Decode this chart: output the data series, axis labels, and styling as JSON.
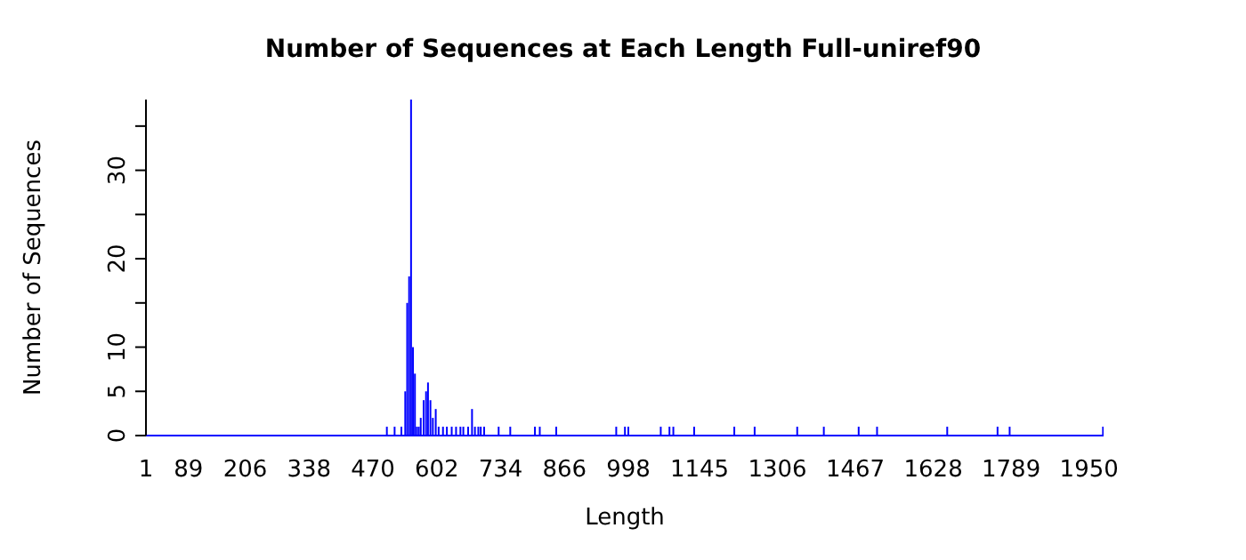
{
  "chart_data": {
    "type": "bar",
    "title": "Number of Sequences at Each Length  Full-uniref90",
    "xlabel": "Length",
    "ylabel": "Number of Sequences",
    "x": [
      499,
      515,
      529,
      537,
      541,
      545,
      549,
      553,
      557,
      561,
      565,
      569,
      575,
      580,
      584,
      589,
      594,
      600,
      606,
      615,
      623,
      633,
      642,
      651,
      657,
      667,
      675,
      681,
      688,
      693,
      700,
      730,
      754,
      805,
      815,
      849,
      973,
      991,
      998,
      1065,
      1083,
      1091,
      1134,
      1217,
      1259,
      1347,
      1402,
      1474,
      1512,
      1657,
      1761,
      1786,
      1979
    ],
    "values": [
      1,
      1,
      1,
      5,
      15,
      18,
      38,
      10,
      7,
      1,
      1,
      2,
      4,
      5,
      6,
      4,
      2,
      3,
      1,
      1,
      1,
      1,
      1,
      1,
      1,
      1,
      3,
      1,
      1,
      1,
      1,
      1,
      1,
      1,
      1,
      1,
      1,
      1,
      1,
      1,
      1,
      1,
      1,
      1,
      1,
      1,
      1,
      1,
      1,
      1,
      1,
      1,
      1
    ],
    "color": "#0000ff",
    "xlim": [
      1,
      1980
    ],
    "xticks": [
      1,
      89,
      206,
      338,
      470,
      602,
      734,
      866,
      998,
      1145,
      1306,
      1467,
      1628,
      1789,
      1950
    ],
    "ylim": [
      0,
      38
    ],
    "yticks": [
      0,
      5,
      10,
      {
        "value": 15,
        "label": null
      },
      20,
      {
        "value": 25,
        "label": null
      },
      30,
      {
        "value": 35,
        "label": null
      }
    ],
    "grid": false,
    "legend": false
  }
}
